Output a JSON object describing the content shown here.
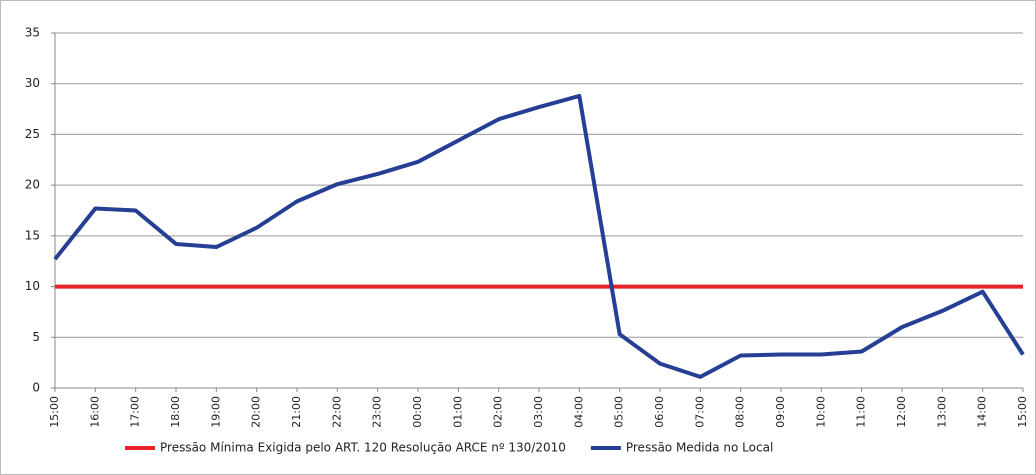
{
  "chart_data": {
    "type": "line",
    "categories": [
      "15:00",
      "16:00",
      "17:00",
      "18:00",
      "19:00",
      "20:00",
      "21:00",
      "22:00",
      "23:00",
      "00:00",
      "01:00",
      "02:00",
      "03:00",
      "04:00",
      "05:00",
      "06:00",
      "07:00",
      "08:00",
      "09:00",
      "10:00",
      "11:00",
      "12:00",
      "13:00",
      "14:00",
      "15:00"
    ],
    "series": [
      {
        "name": "Pressão Mínima Exigida pelo ART. 120 Resolução ARCE nº 130/2010",
        "color": "#e8232a",
        "values": [
          10,
          10,
          10,
          10,
          10,
          10,
          10,
          10,
          10,
          10,
          10,
          10,
          10,
          10,
          10,
          10,
          10,
          10,
          10,
          10,
          10,
          10,
          10,
          10,
          10
        ]
      },
      {
        "name": "Pressão Medida no Local",
        "color": "#253f94",
        "values": [
          12.7,
          17.7,
          17.5,
          14.2,
          13.9,
          15.8,
          18.4,
          20.1,
          21.1,
          22.3,
          24.4,
          26.5,
          27.7,
          28.8,
          5.3,
          2.4,
          1.1,
          3.2,
          3.3,
          3.3,
          3.6,
          6.0,
          7.6,
          9.5,
          3.3
        ]
      }
    ],
    "ylim": [
      0,
      35
    ],
    "yticks": [
      0,
      5,
      10,
      15,
      20,
      25,
      30,
      35
    ],
    "grid": true,
    "legend": "bottom"
  }
}
